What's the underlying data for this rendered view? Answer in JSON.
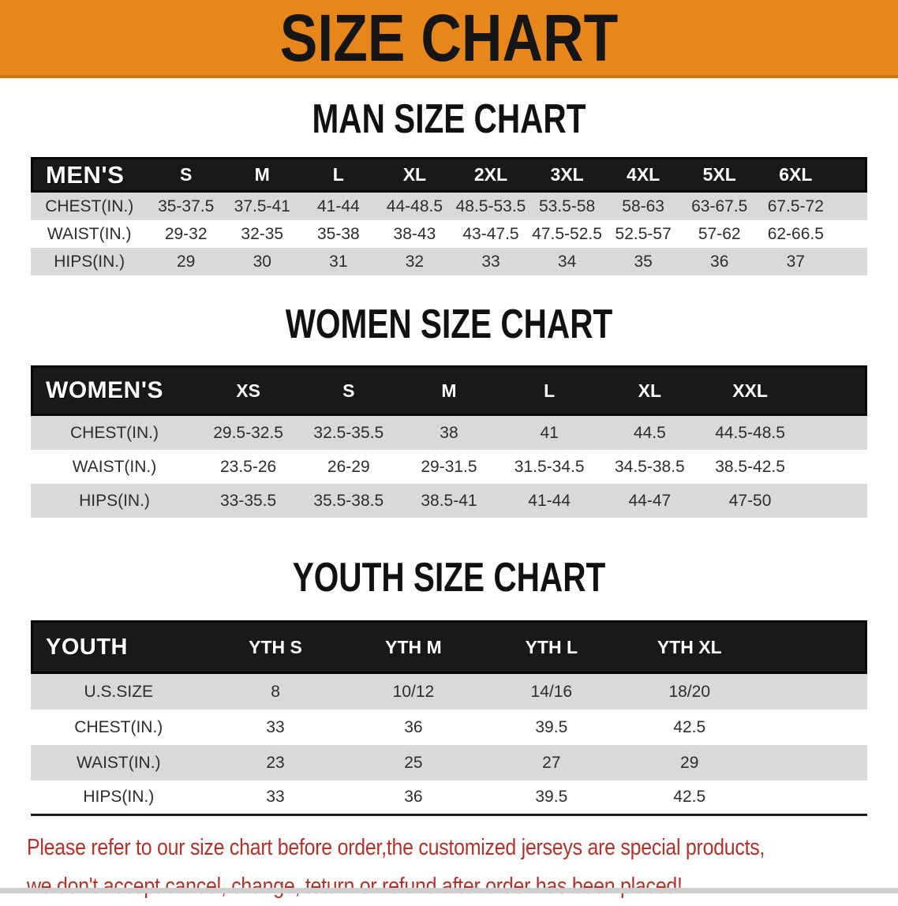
{
  "banner": {
    "title": "SIZE CHART"
  },
  "colors": {
    "banner_bg": "#E7861B",
    "banner_edge": "#CF7317",
    "header_bg": "#191919",
    "shaded_row": "#D9D9D9",
    "accent_text": "#B33129"
  },
  "sections": [
    {
      "id": "men",
      "heading": "MAN SIZE CHART",
      "table": {
        "header_label": "MEN'S",
        "columns": [
          "S",
          "M",
          "L",
          "XL",
          "2XL",
          "3XL",
          "4XL",
          "5XL",
          "6XL"
        ],
        "rows": [
          {
            "label": "CHEST(IN.)",
            "values": [
              "35-37.5",
              "37.5-41",
              "41-44",
              "44-48.5",
              "48.5-53.5",
              "53.5-58",
              "58-63",
              "63-67.5",
              "67.5-72"
            ]
          },
          {
            "label": "WAIST(IN.)",
            "values": [
              "29-32",
              "32-35",
              "35-38",
              "38-43",
              "43-47.5",
              "47.5-52.5",
              "52.5-57",
              "57-62",
              "62-66.5"
            ]
          },
          {
            "label": "HIPS(IN.)",
            "values": [
              "29",
              "30",
              "31",
              "32",
              "33",
              "34",
              "35",
              "36",
              "37"
            ]
          }
        ]
      }
    },
    {
      "id": "women",
      "heading": "WOMEN SIZE CHART",
      "table": {
        "header_label": "WOMEN'S",
        "columns": [
          "XS",
          "S",
          "M",
          "L",
          "XL",
          "XXL"
        ],
        "rows": [
          {
            "label": "CHEST(IN.)",
            "values": [
              "29.5-32.5",
              "32.5-35.5",
              "38",
              "41",
              "44.5",
              "44.5-48.5"
            ]
          },
          {
            "label": "WAIST(IN.)",
            "values": [
              "23.5-26",
              "26-29",
              "29-31.5",
              "31.5-34.5",
              "34.5-38.5",
              "38.5-42.5"
            ]
          },
          {
            "label": "HIPS(IN.)",
            "values": [
              "33-35.5",
              "35.5-38.5",
              "38.5-41",
              "41-44",
              "44-47",
              "47-50"
            ]
          }
        ]
      }
    },
    {
      "id": "youth",
      "heading": "YOUTH SIZE CHART",
      "table": {
        "header_label": "YOUTH",
        "columns": [
          "YTH S",
          "YTH M",
          "YTH L",
          "YTH XL"
        ],
        "rows": [
          {
            "label": "U.S.SIZE",
            "values": [
              "8",
              "10/12",
              "14/16",
              "18/20"
            ]
          },
          {
            "label": "CHEST(IN.)",
            "values": [
              "33",
              "36",
              "39.5",
              "42.5"
            ]
          },
          {
            "label": "WAIST(IN.)",
            "values": [
              "23",
              "25",
              "27",
              "29"
            ]
          },
          {
            "label": "HIPS(IN.)",
            "values": [
              "33",
              "36",
              "39.5",
              "42.5"
            ]
          }
        ]
      }
    }
  ],
  "disclaimer": {
    "line1": "Please refer to our size chart before order,the customized jerseys are special products,",
    "line2": "we don't accept cancel, change, teturn or refund after order has been placed!"
  }
}
